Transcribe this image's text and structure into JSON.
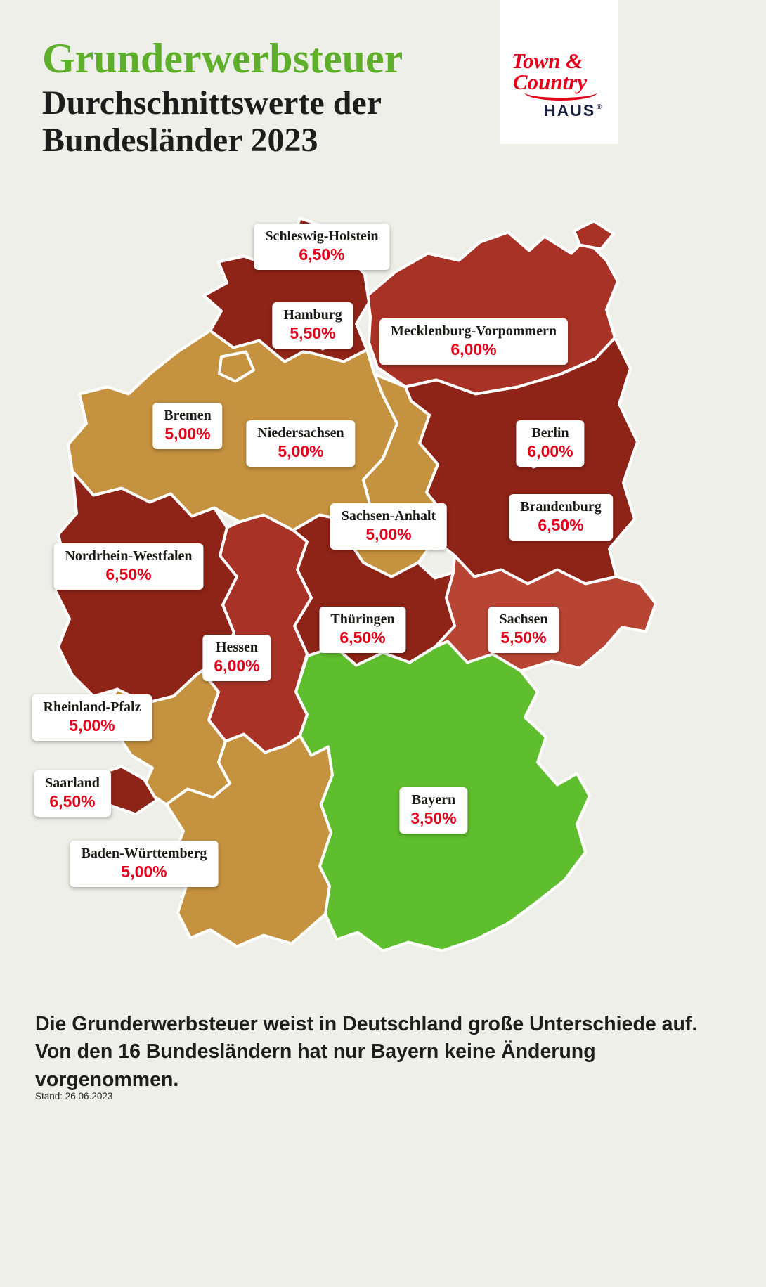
{
  "header": {
    "title": "Grunderwerbsteuer",
    "subtitle_line1": "Durchschnittswerte der",
    "subtitle_line2": "Bundesländer 2023"
  },
  "logo": {
    "line1": "Town &",
    "line2": "Country",
    "line3": "HAUS",
    "reg": "®"
  },
  "footer": {
    "text": "Die Grunderwerbsteuer weist in Deutschland große Unterschiede auf. Von den 16 Bundesländern hat nur Bayern keine Änderung vorgenommen.",
    "stand": "Stand: 26.06.2023"
  },
  "colors": {
    "background": "#edefe8",
    "title_green": "#5faf2d",
    "value_red": "#e2001a",
    "text_dark": "#1d1d1b",
    "rate_350": "#5fbe2d",
    "rate_500": "#c5923f",
    "rate_550": "#b84434",
    "rate_600": "#a83225",
    "rate_650": "#8e2317"
  },
  "chart_data": {
    "type": "choropleth-map",
    "title": "Grunderwerbsteuer Durchschnittswerte der Bundesländer 2023",
    "unit": "percent",
    "legend": "color encodes tax rate: 3.50 green, 5.00 gold, 5.50 light red, 6.00 red, 6.50 dark red",
    "states": [
      {
        "name": "Schleswig-Holstein",
        "value": "6,50%",
        "rate": 6.5
      },
      {
        "name": "Hamburg",
        "value": "5,50%",
        "rate": 5.5
      },
      {
        "name": "Mecklenburg-Vorpommern",
        "value": "6,00%",
        "rate": 6
      },
      {
        "name": "Bremen",
        "value": "5,00%",
        "rate": 5
      },
      {
        "name": "Niedersachsen",
        "value": "5,00%",
        "rate": 5
      },
      {
        "name": "Berlin",
        "value": "6,00%",
        "rate": 6
      },
      {
        "name": "Sachsen-Anhalt",
        "value": "5,00%",
        "rate": 5
      },
      {
        "name": "Brandenburg",
        "value": "6,50%",
        "rate": 6.5
      },
      {
        "name": "Nordrhein-Westfalen",
        "value": "6,50%",
        "rate": 6.5
      },
      {
        "name": "Thüringen",
        "value": "6,50%",
        "rate": 6.5
      },
      {
        "name": "Sachsen",
        "value": "5,50%",
        "rate": 5.5
      },
      {
        "name": "Hessen",
        "value": "6,00%",
        "rate": 6
      },
      {
        "name": "Rheinland-Pfalz",
        "value": "5,00%",
        "rate": 5
      },
      {
        "name": "Saarland",
        "value": "6,50%",
        "rate": 6.5
      },
      {
        "name": "Bayern",
        "value": "3,50%",
        "rate": 3.5
      },
      {
        "name": "Baden-Württemberg",
        "value": "5,00%",
        "rate": 5
      }
    ]
  }
}
